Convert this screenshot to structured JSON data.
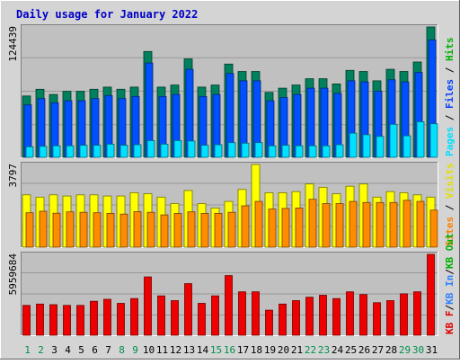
{
  "chart_data": {
    "type": "bar",
    "title": "Daily usage for January 2022",
    "categories": [
      "1",
      "2",
      "3",
      "4",
      "5",
      "6",
      "7",
      "8",
      "9",
      "10",
      "11",
      "12",
      "13",
      "14",
      "15",
      "16",
      "17",
      "18",
      "19",
      "20",
      "21",
      "22",
      "23",
      "24",
      "25",
      "26",
      "27",
      "28",
      "29",
      "30",
      "31"
    ],
    "weekend_days": [
      "1",
      "2",
      "8",
      "9",
      "15",
      "16",
      "22",
      "23",
      "29",
      "30"
    ],
    "panels": [
      {
        "id": "hits-files-pages",
        "ymax_label": "124439",
        "ymax": 124439,
        "legend": [
          {
            "text": "Pages",
            "color": "#00e0ff"
          },
          {
            "text": "Files",
            "color": "#0040ff"
          },
          {
            "text": "Hits",
            "color": "#00b000"
          }
        ],
        "series": [
          {
            "name": "Hits",
            "color": "#00805c",
            "values": [
              58500,
              65000,
              60000,
              63000,
              63000,
              65000,
              67000,
              65000,
              67000,
              101000,
              67000,
              69000,
              94000,
              67000,
              69000,
              89000,
              82000,
              82000,
              62000,
              66000,
              69000,
              75000,
              75000,
              70000,
              83000,
              82000,
              73000,
              84000,
              82000,
              91000,
              124439
            ]
          },
          {
            "name": "Files",
            "color": "#0050ff",
            "values": [
              50000,
              56000,
              52000,
              54000,
              54000,
              56000,
              59000,
              56000,
              58000,
              90000,
              58000,
              60000,
              84000,
              58000,
              60000,
              80000,
              73000,
              73000,
              54000,
              57000,
              60000,
              66000,
              66000,
              61000,
              73000,
              72000,
              63000,
              74000,
              72000,
              81000,
              112000
            ]
          },
          {
            "name": "Pages",
            "color": "#00e0ff",
            "values": [
              10000,
              10500,
              11000,
              11000,
              11500,
              11500,
              12500,
              11500,
              12000,
              16000,
              12500,
              16000,
              15500,
              11500,
              12000,
              14000,
              13500,
              14000,
              11000,
              11500,
              11000,
              11000,
              11000,
              12000,
              23000,
              21500,
              20000,
              31500,
              20500,
              34000,
              32000
            ]
          }
        ]
      },
      {
        "id": "visits-sites",
        "ymax_label": "3797",
        "ymax": 3797,
        "legend": [
          {
            "text": "Sites",
            "color": "#ff8000"
          },
          {
            "text": "Visits",
            "color": "#e0e000"
          }
        ],
        "series": [
          {
            "name": "Visits",
            "color": "#ffff00",
            "values": [
              2400,
              2300,
              2400,
              2350,
              2400,
              2400,
              2350,
              2350,
              2500,
              2450,
              2300,
              2000,
              2600,
              2000,
              1800,
              2100,
              2650,
              3797,
              2500,
              2500,
              2550,
              2900,
              2750,
              2450,
              2800,
              2900,
              2300,
              2550,
              2500,
              2400,
              2300
            ]
          },
          {
            "name": "Sites",
            "color": "#ff8c00",
            "values": [
              1580,
              1650,
              1560,
              1620,
              1600,
              1580,
              1550,
              1520,
              1630,
              1600,
              1480,
              1550,
              1620,
              1550,
              1550,
              1600,
              1900,
              2100,
              1750,
              1780,
              1800,
              2200,
              2000,
              2000,
              2100,
              2050,
              2050,
              2050,
              2150,
              2100,
              1700
            ]
          }
        ]
      },
      {
        "id": "kbytes",
        "ymax_label": "5959684",
        "ymax": 5959684,
        "legend": [
          {
            "text": "KB F",
            "color": "#e00000"
          },
          {
            "text": "KB In",
            "color": "#3080ff"
          },
          {
            "text": "KB Out",
            "color": "#00b000"
          }
        ],
        "legend_separator": "/",
        "series": [
          {
            "name": "KB F",
            "color": "#ee0000",
            "values": [
              2200000,
              2300000,
              2250000,
              2200000,
              2200000,
              2500000,
              2650000,
              2350000,
              2700000,
              4300000,
              2900000,
              2550000,
              3800000,
              2350000,
              2900000,
              4400000,
              3200000,
              3200000,
              1850000,
              2300000,
              2550000,
              2800000,
              2950000,
              2700000,
              3200000,
              3000000,
              2400000,
              2550000,
              3050000,
              3200000,
              5959684
            ]
          }
        ]
      }
    ]
  }
}
